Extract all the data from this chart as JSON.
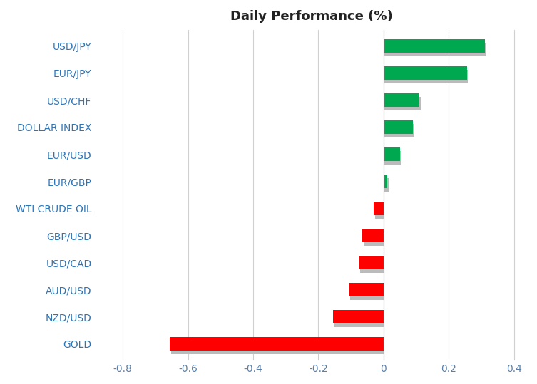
{
  "categories": [
    "USD/JPY",
    "EUR/JPY",
    "USD/CHF",
    "DOLLAR INDEX",
    "EUR/USD",
    "EUR/GBP",
    "WTI CRUDE OIL",
    "GBP/USD",
    "USD/CAD",
    "AUD/USD",
    "NZD/USD",
    "GOLD"
  ],
  "values": [
    0.31,
    0.255,
    0.11,
    0.09,
    0.05,
    0.012,
    -0.03,
    -0.065,
    -0.075,
    -0.105,
    -0.155,
    -0.655
  ],
  "positive_color": "#00a850",
  "negative_color": "#ff0000",
  "shadow_color": "#bbbbbb",
  "title": "Daily Performance (%)",
  "title_fontsize": 13,
  "title_fontweight": "bold",
  "xlim": [
    -0.88,
    0.44
  ],
  "xticks": [
    -0.8,
    -0.6,
    -0.4,
    -0.2,
    0.0,
    0.2,
    0.4
  ],
  "xtick_labels": [
    "-0.8",
    "-0.6",
    "-0.4",
    "-0.2",
    "0",
    "0.2",
    "0.4"
  ],
  "background_color": "#ffffff",
  "grid_color": "#d0d0d0",
  "label_color": "#2e75b6",
  "tick_color": "#5a7fa8",
  "bar_height": 0.5,
  "label_fontsize": 10
}
